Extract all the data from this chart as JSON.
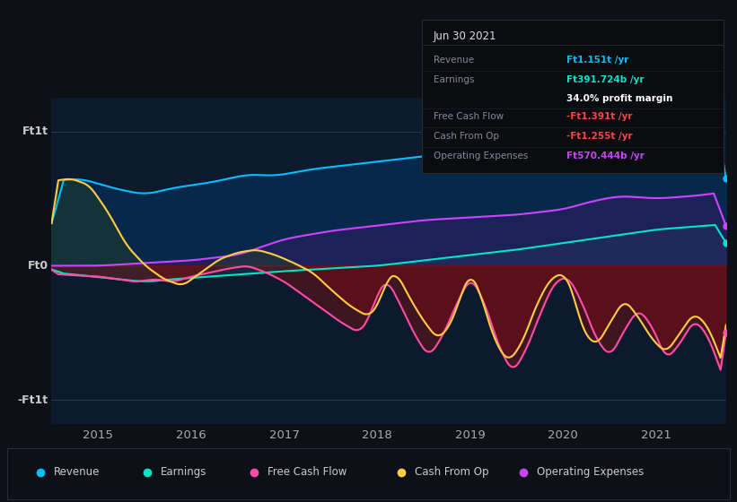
{
  "bg_color": "#0d1117",
  "plot_bg": "#0d1a2e",
  "y_label_top": "Ft1t",
  "y_label_bottom": "-Ft1t",
  "y_label_zero": "Ft0",
  "x_ticks": [
    2015,
    2016,
    2017,
    2018,
    2019,
    2020,
    2021
  ],
  "colors": {
    "revenue": "#00bfff",
    "earnings": "#00e5cc",
    "free_cash_flow": "#ff4da6",
    "cash_from_op": "#ffcc44",
    "operating_expenses": "#cc44ff"
  },
  "tooltip": {
    "date": "Jun 30 2021",
    "rows": [
      {
        "label": "Revenue",
        "value": "Ft1.151t /yr",
        "color": "#00bfff",
        "sep": true
      },
      {
        "label": "Earnings",
        "value": "Ft391.724b /yr",
        "color": "#00e5cc",
        "sep": false
      },
      {
        "label": "",
        "value": "34.0% profit margin",
        "color": "#ffffff",
        "sep": true
      },
      {
        "label": "Free Cash Flow",
        "value": "-Ft1.391t /yr",
        "color": "#ff4444",
        "sep": true
      },
      {
        "label": "Cash From Op",
        "value": "-Ft1.255t /yr",
        "color": "#ff4444",
        "sep": true
      },
      {
        "label": "Operating Expenses",
        "value": "Ft570.444b /yr",
        "color": "#cc44ff",
        "sep": false
      }
    ]
  },
  "legend": [
    {
      "label": "Revenue",
      "color": "#00bfff"
    },
    {
      "label": "Earnings",
      "color": "#00e5cc"
    },
    {
      "label": "Free Cash Flow",
      "color": "#ff4da6"
    },
    {
      "label": "Cash From Op",
      "color": "#ffcc44"
    },
    {
      "label": "Operating Expenses",
      "color": "#cc44ff"
    }
  ]
}
